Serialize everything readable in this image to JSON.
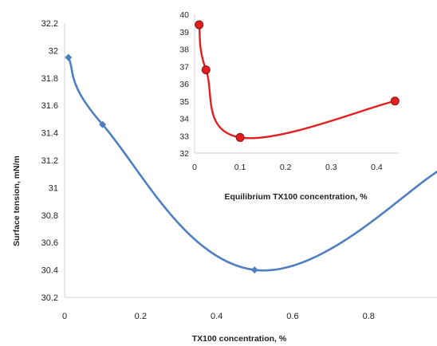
{
  "chart_data": [
    {
      "type": "line",
      "xlabel": "TX100 concentration, %",
      "ylabel": "Surface tension, mN/m",
      "xlim": [
        0,
        0.98
      ],
      "ylim": [
        30.2,
        32.2
      ],
      "x_ticks": [
        "0",
        "0.2",
        "0.4",
        "0.6",
        "0.8"
      ],
      "x_tick_values": [
        0,
        0.2,
        0.4,
        0.6,
        0.8
      ],
      "y_ticks": [
        "30.2",
        "30.4",
        "30.6",
        "30.8",
        "31",
        "31.2",
        "31.4",
        "31.6",
        "31.8",
        "32",
        "32.2"
      ],
      "y_tick_values": [
        30.2,
        30.4,
        30.6,
        30.8,
        31.0,
        31.2,
        31.4,
        31.6,
        31.8,
        32.0,
        32.2
      ],
      "series": [
        {
          "color": "#4f7fc0",
          "x": [
            0.01,
            0.1,
            0.5,
            1.0
          ],
          "y": [
            31.95,
            31.46,
            30.4,
            31.15
          ]
        }
      ],
      "marker": "diamond",
      "grid": false
    },
    {
      "type": "line",
      "xlabel": "Equilibrium TX100 concentration, %",
      "ylabel": "",
      "xlim": [
        0,
        0.45
      ],
      "ylim": [
        32,
        40
      ],
      "x_ticks": [
        "0",
        "0.1",
        "0.2",
        "0.3",
        "0.4"
      ],
      "x_tick_values": [
        0,
        0.1,
        0.2,
        0.3,
        0.4
      ],
      "y_ticks": [
        "32",
        "33",
        "34",
        "35",
        "36",
        "37",
        "38",
        "39",
        "40"
      ],
      "y_tick_values": [
        32,
        33,
        34,
        35,
        36,
        37,
        38,
        39,
        40
      ],
      "series": [
        {
          "color": "#e02020",
          "x": [
            0.01,
            0.025,
            0.1,
            0.44
          ],
          "y": [
            39.4,
            36.8,
            32.9,
            35.0
          ]
        }
      ],
      "marker": "circle",
      "grid": false
    }
  ]
}
